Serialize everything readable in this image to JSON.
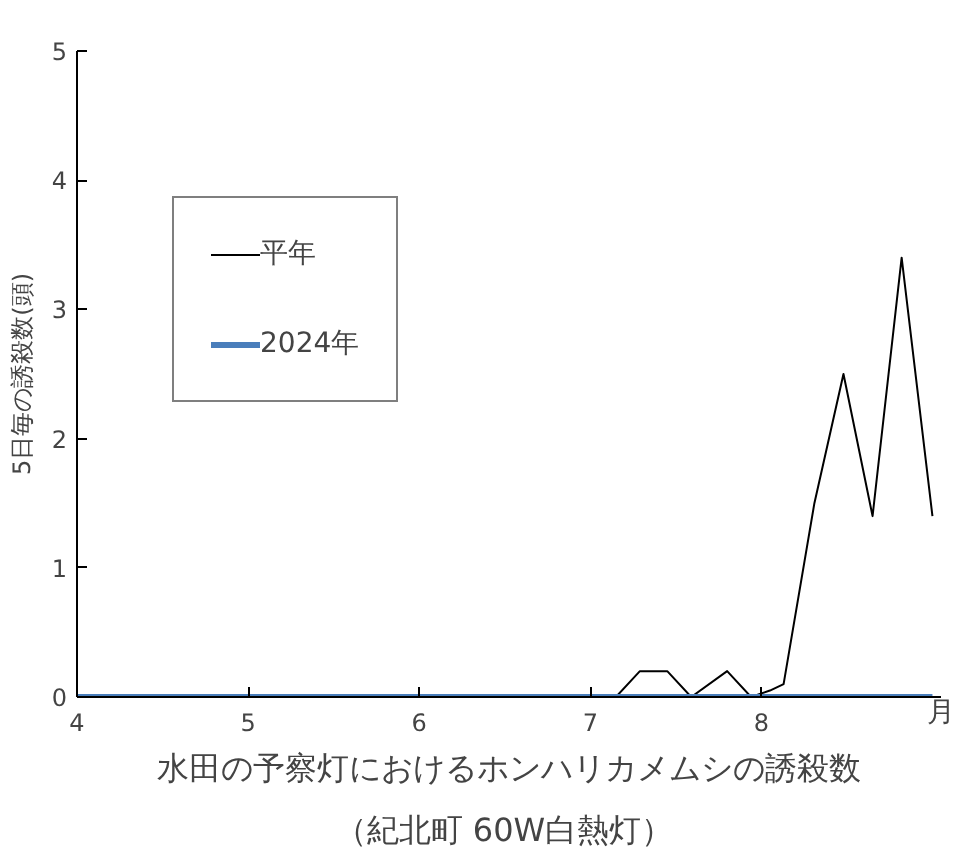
{
  "chart_data": {
    "type": "line",
    "title": "水田の予察灯におけるホンハリカメムシの誘殺数",
    "subtitle": "（紀北町  60W白熱灯）",
    "xlabel": "月",
    "ylabel": "5日毎の誘殺数(頭)",
    "series": [
      {
        "name": "平年",
        "color": "#000000",
        "x": [
          4,
          7.02,
          7.15,
          7.29,
          7.45,
          7.59,
          7.8,
          7.94,
          8.05,
          8.13,
          8.31,
          8.48,
          8.65,
          8.82,
          9.0
        ],
        "values": [
          0,
          0,
          0,
          0.2,
          0.2,
          0,
          0.2,
          0,
          0.05,
          0.1,
          1.5,
          2.5,
          1.4,
          3.4,
          1.4
        ]
      },
      {
        "name": "2024年",
        "color": "#4a7ebb",
        "x": [
          4,
          9.0
        ],
        "values": [
          0,
          0
        ]
      }
    ],
    "xlim": [
      4,
      9.05
    ],
    "xticks": [
      4,
      5,
      6,
      7,
      8
    ],
    "ylim": [
      0,
      5
    ],
    "yticks": [
      0,
      1,
      2,
      3,
      4,
      5
    ],
    "grid": false,
    "legend": "top left",
    "marker": "none",
    "line_style": "solid"
  }
}
